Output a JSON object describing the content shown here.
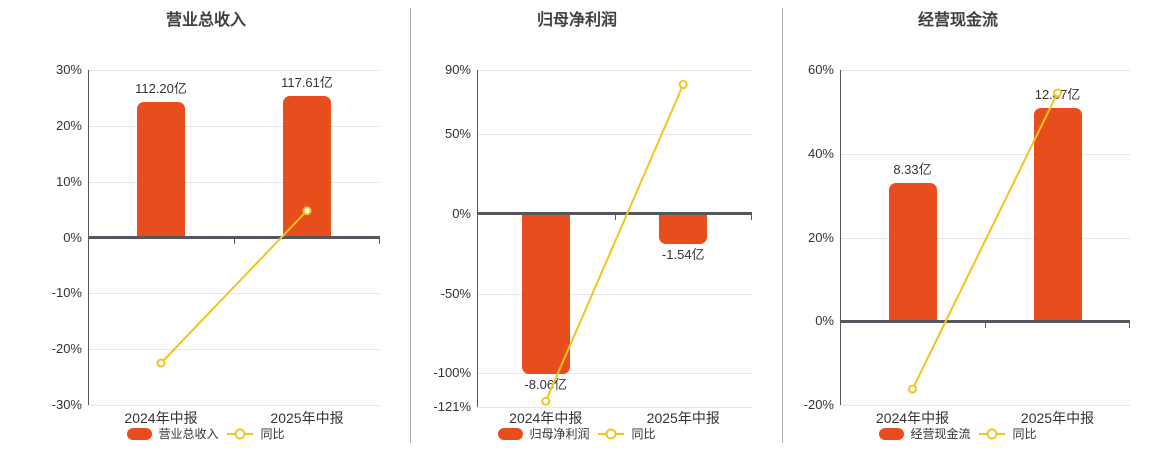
{
  "colors": {
    "bar": "#e84d1d",
    "line": "#f3c41f",
    "grid": "#e3e7f0",
    "zero_axis": "#55585e",
    "axis_line": "#55585e",
    "divider": "#aaaaaa",
    "text": "#333333",
    "title": "#3f3f3f",
    "marker_fill": "#ffffff"
  },
  "chart_data": [
    {
      "type": "bar+line",
      "title": "营业总收入",
      "categories": [
        "2024年中报",
        "2025年中报"
      ],
      "series": [
        {
          "name": "营业总收入",
          "type": "bar",
          "unit": "亿",
          "labels": [
            "112.20亿",
            "117.61亿"
          ],
          "values_yi": [
            112.2,
            117.61
          ],
          "bar_height_pct": [
            24.2,
            25.4
          ]
        },
        {
          "name": "同比",
          "type": "line",
          "unit": "%",
          "values_pct": [
            -22.5,
            4.8
          ]
        }
      ],
      "y_axis": {
        "min": -30,
        "max": 30,
        "ticks": [
          30,
          20,
          10,
          0,
          -10,
          -20,
          -30
        ],
        "tick_suffix": "%"
      },
      "grid": true,
      "legend": [
        "营业总收入",
        "同比"
      ],
      "legend_position": "bottom"
    },
    {
      "type": "bar+line",
      "title": "归母净利润",
      "categories": [
        "2024年中报",
        "2025年中报"
      ],
      "series": [
        {
          "name": "归母净利润",
          "type": "bar",
          "unit": "亿",
          "labels": [
            "-8.06亿",
            "-1.54亿"
          ],
          "values_yi": [
            -8.06,
            -1.54
          ],
          "bar_height_pct": [
            -100.4,
            -19.1
          ]
        },
        {
          "name": "同比",
          "type": "line",
          "unit": "%",
          "values_pct": [
            -117.4,
            80.9
          ]
        }
      ],
      "y_axis": {
        "min": -121,
        "max": 90,
        "ticks": [
          90,
          50,
          0,
          -50,
          -100,
          -121
        ],
        "tick_suffix": "%"
      },
      "grid": true,
      "legend": [
        "归母净利润",
        "同比"
      ],
      "legend_position": "bottom"
    },
    {
      "type": "bar+line",
      "title": "经营现金流",
      "categories": [
        "2024年中报",
        "2025年中报"
      ],
      "series": [
        {
          "name": "经营现金流",
          "type": "bar",
          "unit": "亿",
          "labels": [
            "8.33亿",
            "12.87亿"
          ],
          "values_yi": [
            8.33,
            12.87
          ],
          "bar_height_pct": [
            33,
            51
          ]
        },
        {
          "name": "同比",
          "type": "line",
          "unit": "%",
          "values_pct": [
            -16.2,
            54.5
          ]
        }
      ],
      "y_axis": {
        "min": -20,
        "max": 60,
        "ticks": [
          60,
          40,
          20,
          0,
          -20
        ],
        "tick_suffix": "%"
      },
      "grid": true,
      "legend": [
        "经营现金流",
        "同比"
      ],
      "legend_position": "bottom"
    }
  ]
}
